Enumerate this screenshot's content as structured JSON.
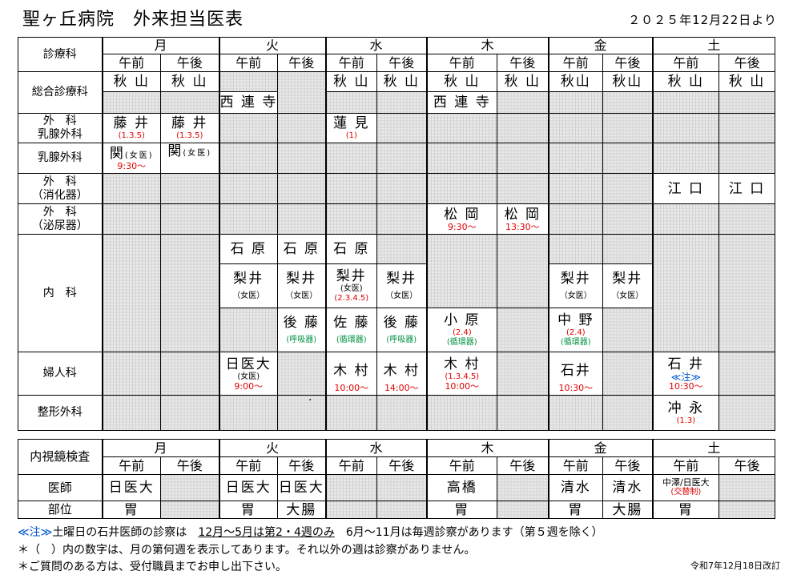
{
  "title": "聖ヶ丘病院　外来担当医表",
  "effective_date": "２０２５年12月22日より",
  "schedule": {
    "dept_header": "診療科",
    "days": [
      "月",
      "火",
      "水",
      "木",
      "金",
      "土"
    ],
    "am": "午前",
    "pm": "午後",
    "depts": {
      "general": "総合診療科",
      "surgery_breast_1": "外　科",
      "surgery_breast_2": "乳腺外科",
      "breast": "乳腺外科",
      "digestive_1": "外　科",
      "digestive_2": "（消化器）",
      "urology_1": "外　科",
      "urology_2": "（泌尿器）",
      "internal": "内　科",
      "gyn": "婦人科",
      "ortho": "整形外科"
    },
    "doctors": {
      "akiyama": "秋 山",
      "akiyama2": "秋山",
      "sairenji": "西 連 寺",
      "fujii": "藤 井",
      "fujii_note": "(1.3.5)",
      "hasumi": "蓮 見",
      "hasumi_note": "(1)",
      "seki": "関",
      "seki_f": "(女医)",
      "seki_time": "9:30〜",
      "eguchi": "江 口",
      "matsuoka": "松 岡",
      "matsuoka_am": "9:30〜",
      "matsuoka_pm": "13:30〜",
      "ishihara": "石 原",
      "nashii": "梨井",
      "female": "（女医）",
      "female_paren": "(女医)",
      "nashii_wed_note": "(2.3.4.5)",
      "goto": "後 藤",
      "sato": "佐 藤",
      "kohara": "小 原",
      "kohara_note": "(2.4)",
      "nakano": "中 野",
      "nakano_note": "(2.4)",
      "respiratory": "(呼吸器)",
      "circulatory": "(循環器)",
      "nichii": "日医大",
      "nichii_time": "9:00〜",
      "kimura": "木 村",
      "kimura_note": "(1.3.4.5)",
      "t1000": "10:00〜",
      "t1400": "14:00〜",
      "t1030": "10:30〜",
      "ishii_fri": "石井",
      "ishii_sat": "石 井",
      "note_mark": "≪注≫",
      "okinaga": "冲 永",
      "okinaga_note": "(1.3)"
    }
  },
  "endoscopy": {
    "title": "内視鏡検査",
    "doctor_label": "医師",
    "site_label": "部位",
    "nichii": "日医大",
    "takahashi": "高橋",
    "shimizu": "清水",
    "nakazawa": "中澤/日医大",
    "alternating": "(交替制)",
    "stomach": "胃",
    "colon": "大腸"
  },
  "notes": {
    "note_mark": "≪注≫",
    "line1": "土曜日の石井医師の診察は　",
    "line1_u": "12月〜5月は第2・4週のみ",
    "line1_rest": "　6月〜11月は毎週診察があります（第５週を除く）",
    "line2": "＊（　）内の数字は、月の第何週を表示してあります。それ以外の週は診察がありません。",
    "line3": "＊ご質問のある方は、受付職員までお申し出下さい。",
    "revised": "令和7年12月18日改訂"
  }
}
